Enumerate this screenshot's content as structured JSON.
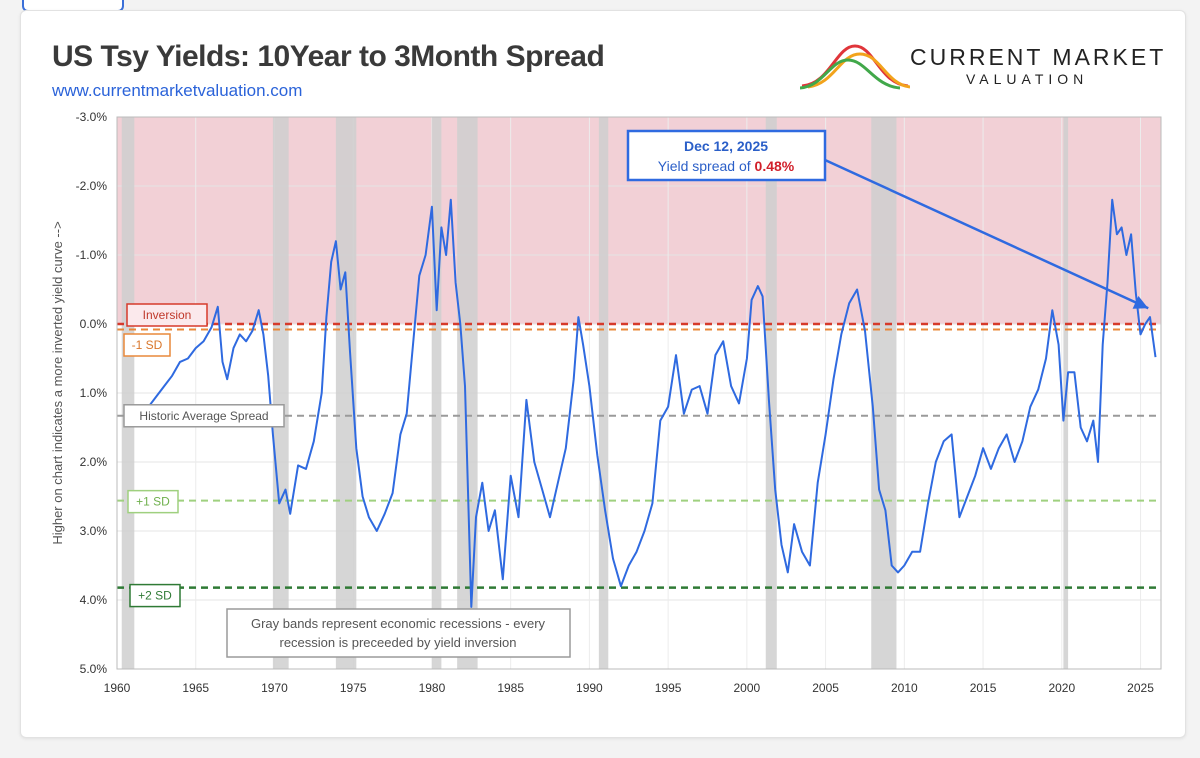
{
  "header": {
    "title": "US Tsy Yields: 10Year to 3Month Spread",
    "url": "www.currentmarketvaluation.com"
  },
  "logo": {
    "name": "CURRENT MARKET",
    "sub": "VALUATION"
  },
  "colors": {
    "series": "#2f6ae0",
    "inversion_zone": "#f2d0d6",
    "recession": "#cfcfcf",
    "inversion_line": "#d63a2b",
    "minus1sd_line": "#e8883a",
    "avg_line": "#9a9a9a",
    "plus1sd_line": "#9fd07f",
    "plus2sd_line": "#2f7a35"
  },
  "chart_data": {
    "type": "line",
    "title": "US Tsy Yields: 10Year to 3Month Spread",
    "ylabel": "Higher on chart indicates a more inverted yield curve -->",
    "xlabel": "",
    "xlim": [
      1960,
      2026.3
    ],
    "ylim": [
      5.0,
      -3.0
    ],
    "y_axis_inverted": true,
    "x_ticks": [
      1960,
      1965,
      1970,
      1975,
      1980,
      1985,
      1990,
      1995,
      2000,
      2005,
      2010,
      2015,
      2020,
      2025
    ],
    "y_ticks": [
      -3.0,
      -2.0,
      -1.0,
      0.0,
      1.0,
      2.0,
      3.0,
      4.0,
      5.0
    ],
    "y_tick_labels": [
      "-3.0%",
      "-2.0%",
      "-1.0%",
      "0.0%",
      "1.0%",
      "2.0%",
      "3.0%",
      "4.0%",
      "5.0%"
    ],
    "x_tick_labels": [
      "1960",
      "1965",
      "1970",
      "1975",
      "1980",
      "1985",
      "1990",
      "1995",
      "2000",
      "2005",
      "2010",
      "2015",
      "2020",
      "2025"
    ],
    "inversion_zone": [
      -3.0,
      0.0
    ],
    "recessions": [
      [
        1960.3,
        1961.1
      ],
      [
        1969.9,
        1970.9
      ],
      [
        1973.9,
        1975.2
      ],
      [
        1980.0,
        1980.6
      ],
      [
        1981.6,
        1982.9
      ],
      [
        1990.6,
        1991.2
      ],
      [
        2001.2,
        2001.9
      ],
      [
        2007.9,
        2009.5
      ],
      [
        2020.1,
        2020.4
      ]
    ],
    "reference_lines": [
      {
        "name": "Inversion",
        "value": 0.0,
        "label": "Inversion",
        "style": "dashed"
      },
      {
        "name": "-1 SD",
        "value": 0.08,
        "label": "-1 SD",
        "style": "dashed"
      },
      {
        "name": "Historic Average Spread",
        "value": 1.33,
        "label": "Historic Average Spread",
        "style": "dashed"
      },
      {
        "name": "+1 SD",
        "value": 2.56,
        "label": "+1 SD",
        "style": "dashed"
      },
      {
        "name": "+2 SD",
        "value": 3.82,
        "label": "+2 SD",
        "style": "dashed"
      }
    ],
    "series": [
      {
        "name": "10Y-3M spread (%)",
        "x": [
          1962.0,
          1962.5,
          1963.0,
          1963.5,
          1964.0,
          1964.5,
          1965.0,
          1965.5,
          1966.0,
          1966.4,
          1966.7,
          1967.0,
          1967.4,
          1967.8,
          1968.2,
          1968.6,
          1969.0,
          1969.3,
          1969.6,
          1969.9,
          1970.3,
          1970.7,
          1971.0,
          1971.5,
          1972.0,
          1972.5,
          1973.0,
          1973.3,
          1973.6,
          1973.9,
          1974.2,
          1974.5,
          1974.8,
          1975.2,
          1975.6,
          1976.0,
          1976.5,
          1977.0,
          1977.5,
          1978.0,
          1978.4,
          1978.8,
          1979.2,
          1979.6,
          1980.0,
          1980.3,
          1980.6,
          1980.9,
          1981.2,
          1981.5,
          1981.8,
          1982.1,
          1982.5,
          1982.8,
          1983.2,
          1983.6,
          1984.0,
          1984.5,
          1985.0,
          1985.5,
          1986.0,
          1986.5,
          1987.0,
          1987.5,
          1988.0,
          1988.5,
          1989.0,
          1989.3,
          1989.6,
          1990.0,
          1990.5,
          1991.0,
          1991.5,
          1992.0,
          1992.5,
          1993.0,
          1993.5,
          1994.0,
          1994.5,
          1995.0,
          1995.5,
          1996.0,
          1996.5,
          1997.0,
          1997.5,
          1998.0,
          1998.5,
          1999.0,
          1999.5,
          2000.0,
          2000.3,
          2000.7,
          2001.0,
          2001.4,
          2001.8,
          2002.2,
          2002.6,
          2003.0,
          2003.5,
          2004.0,
          2004.5,
          2005.0,
          2005.5,
          2006.0,
          2006.5,
          2007.0,
          2007.5,
          2008.0,
          2008.4,
          2008.8,
          2009.2,
          2009.6,
          2010.0,
          2010.5,
          2011.0,
          2011.5,
          2012.0,
          2012.5,
          2013.0,
          2013.5,
          2014.0,
          2014.5,
          2015.0,
          2015.5,
          2016.0,
          2016.5,
          2017.0,
          2017.5,
          2018.0,
          2018.5,
          2019.0,
          2019.4,
          2019.8,
          2020.1,
          2020.4,
          2020.8,
          2021.2,
          2021.6,
          2022.0,
          2022.3,
          2022.6,
          2022.9,
          2023.2,
          2023.5,
          2023.8,
          2024.1,
          2024.4,
          2024.7,
          2025.0,
          2025.3,
          2025.6,
          2025.95
        ],
        "values": [
          1.2,
          1.05,
          0.9,
          0.75,
          0.55,
          0.5,
          0.35,
          0.25,
          0.05,
          -0.25,
          0.55,
          0.8,
          0.35,
          0.15,
          0.25,
          0.1,
          -0.2,
          0.15,
          0.75,
          1.6,
          2.6,
          2.4,
          2.75,
          2.05,
          2.1,
          1.7,
          1.0,
          -0.1,
          -0.9,
          -1.2,
          -0.5,
          -0.75,
          0.4,
          1.8,
          2.5,
          2.8,
          3.0,
          2.75,
          2.45,
          1.6,
          1.3,
          0.3,
          -0.7,
          -1.0,
          -1.7,
          -0.2,
          -1.4,
          -1.0,
          -1.8,
          -0.6,
          0.0,
          0.9,
          4.1,
          2.8,
          2.3,
          3.0,
          2.7,
          3.7,
          2.2,
          2.8,
          1.1,
          2.0,
          2.4,
          2.8,
          2.3,
          1.8,
          0.8,
          -0.1,
          0.3,
          0.9,
          1.9,
          2.7,
          3.4,
          3.8,
          3.5,
          3.3,
          3.0,
          2.6,
          1.4,
          1.2,
          0.45,
          1.3,
          0.95,
          0.9,
          1.3,
          0.45,
          0.25,
          0.9,
          1.15,
          0.5,
          -0.35,
          -0.55,
          -0.4,
          1.1,
          2.4,
          3.2,
          3.6,
          2.9,
          3.3,
          3.5,
          2.3,
          1.6,
          0.8,
          0.15,
          -0.3,
          -0.5,
          0.1,
          1.2,
          2.4,
          2.7,
          3.5,
          3.6,
          3.5,
          3.3,
          3.3,
          2.6,
          2.0,
          1.7,
          1.6,
          2.8,
          2.5,
          2.2,
          1.8,
          2.1,
          1.8,
          1.6,
          2.0,
          1.7,
          1.2,
          0.95,
          0.5,
          -0.2,
          0.3,
          1.4,
          0.7,
          0.7,
          1.5,
          1.7,
          1.4,
          2.0,
          0.3,
          -0.6,
          -1.8,
          -1.3,
          -1.4,
          -1.0,
          -1.3,
          -0.45,
          0.15,
          0.0,
          -0.1,
          0.48
        ]
      }
    ],
    "annotation": {
      "date": "Dec 12, 2025",
      "text": "Yield spread of",
      "value": "0.48%",
      "target_x": 2025.95,
      "target_y": 0.48
    },
    "note": {
      "line1": "Gray bands represent economic recessions - every",
      "line2": "recession is preceeded by yield inversion"
    }
  }
}
